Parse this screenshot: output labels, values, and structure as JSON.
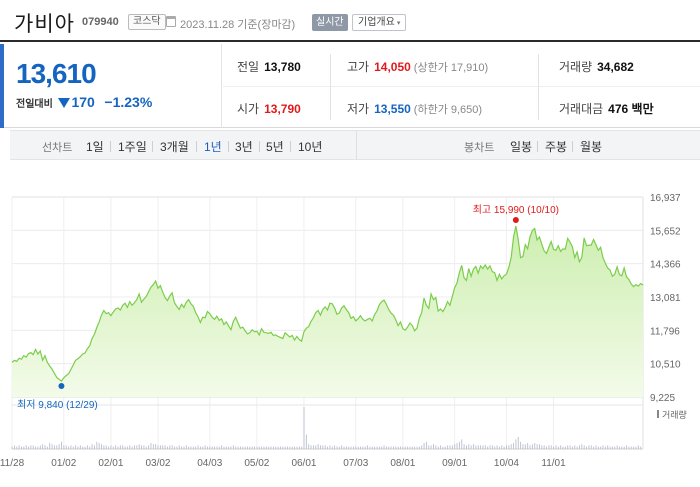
{
  "header": {
    "name": "가비아",
    "code": "079940",
    "market": "코스닥",
    "date": "2023.11.28  기준(장마감)",
    "realtime_label": "실시간",
    "overview_label": "기업개요",
    "caret": "▾"
  },
  "quote": {
    "price": "13,610",
    "change_label": "전일대비",
    "change_amount": "170",
    "change_percent": "−1.23%",
    "direction": "down"
  },
  "stats": {
    "prev_close": {
      "label": "전일",
      "value": "13,780"
    },
    "open": {
      "label": "시가",
      "value": "13,790"
    },
    "high": {
      "label": "고가",
      "value": "14,050",
      "sub": "(상한가 17,910)"
    },
    "low": {
      "label": "저가",
      "value": "13,550",
      "sub": "(하한가 9,650)"
    },
    "volume": {
      "label": "거래량",
      "value": "34,682"
    },
    "amount": {
      "label": "거래대금",
      "value": "476 백만"
    }
  },
  "periods": {
    "line_label": "선차트",
    "line_items": [
      "1일",
      "1주일",
      "3개월",
      "1년",
      "3년",
      "5년",
      "10년"
    ],
    "active": "1년",
    "candle_label": "봉차트",
    "candle_items": [
      "일봉",
      "주봉",
      "월봉"
    ]
  },
  "colors": {
    "accent_blue": "#1565c0",
    "up_red": "#e01a1a",
    "line_green": "#7ccd4c",
    "fill_green_top": "#cdeeb0",
    "fill_green_bottom": "#f3fbe9"
  },
  "chart_data": {
    "type": "area",
    "ylim": [
      9225,
      16937
    ],
    "yticks": [
      "16,937",
      "15,652",
      "14,366",
      "13,081",
      "11,796",
      "10,510",
      "9,225"
    ],
    "ytick_values": [
      16937,
      15652,
      14366,
      13081,
      11796,
      10510,
      9225
    ],
    "xlabels": [
      "11/28",
      "01/02",
      "02/01",
      "03/02",
      "04/03",
      "05/02",
      "06/01",
      "07/03",
      "08/01",
      "09/01",
      "10/04",
      "11/01"
    ],
    "xlabel_index": [
      0,
      22,
      42,
      62,
      84,
      104,
      124,
      146,
      166,
      188,
      210,
      230
    ],
    "high_annotation": "최고 15,990 (10/10)",
    "low_annotation": "최저 9,840 (12/29)",
    "volume_label": "거래량",
    "prices": [
      10560,
      10640,
      10600,
      10720,
      10680,
      10820,
      10760,
      10900,
      10940,
      10860,
      11060,
      10880,
      11000,
      10640,
      10820,
      10560,
      10420,
      10300,
      10140,
      9980,
      9910,
      9840,
      9960,
      10050,
      10120,
      10280,
      10460,
      10640,
      10700,
      10780,
      10880,
      10920,
      11080,
      11200,
      11480,
      11640,
      11900,
      12120,
      12380,
      12560,
      12440,
      12480,
      12360,
      12500,
      12620,
      12660,
      12580,
      12760,
      12840,
      12680,
      12900,
      12760,
      12860,
      12980,
      13200,
      12880,
      13000,
      13100,
      13280,
      13460,
      13560,
      13700,
      13420,
      13520,
      13280,
      13060,
      12940,
      13120,
      13240,
      12860,
      12720,
      12600,
      12800,
      12680,
      12880,
      12980,
      12820,
      12720,
      12480,
      12320,
      12100,
      12300,
      12280,
      12520,
      12440,
      12300,
      12220,
      12340,
      12180,
      12240,
      12020,
      12120,
      11960,
      11820,
      12140,
      12300,
      12080,
      11880,
      11920,
      11780,
      11660,
      11700,
      11820,
      11740,
      11760,
      11620,
      11860,
      11720,
      11700,
      11680,
      11720,
      11600,
      11620,
      11560,
      11520,
      11480,
      11700,
      11620,
      11540,
      11600,
      11420,
      11560,
      11440,
      11380,
      11740,
      11880,
      11940,
      12140,
      12280,
      12480,
      12560,
      12380,
      12600,
      12700,
      12580,
      12840,
      12820,
      12660,
      12420,
      12460,
      12660,
      12740,
      12600,
      12480,
      12260,
      12320,
      12160,
      12240,
      12360,
      12220,
      12160,
      12220,
      12260,
      12160,
      12400,
      12540,
      12780,
      12900,
      12960,
      12800,
      12600,
      12460,
      12380,
      12200,
      11980,
      12120,
      11860,
      11800,
      11920,
      12080,
      11980,
      11780,
      11880,
      12260,
      12480,
      13040,
      12760,
      12640,
      13200,
      12980,
      13060,
      12540,
      12620,
      12520,
      12680,
      12900,
      12760,
      13100,
      13440,
      13620,
      14020,
      14300,
      13820,
      13720,
      14180,
      13880,
      14160,
      14260,
      14000,
      14280,
      14180,
      14320,
      14160,
      14280,
      14060,
      14020,
      13720,
      13960,
      13780,
      13900,
      13960,
      14220,
      14600,
      15380,
      15820,
      15300,
      14600,
      14640,
      15100,
      14940,
      15400,
      15640,
      15720,
      15280,
      15400,
      15120,
      14860,
      14760,
      15000,
      15220,
      14920,
      14880,
      15060,
      14840,
      14940,
      14920,
      15340,
      15200,
      15020,
      14600,
      14820,
      14440,
      14600,
      15360,
      15060,
      15080,
      15080,
      15300,
      15100,
      14880,
      15000,
      14600,
      14380,
      14200,
      14120,
      13880,
      13960,
      14240,
      13940,
      13900,
      14200,
      13860,
      13760,
      13580,
      13480,
      13560,
      13500,
      13600,
      13540
    ],
    "volumes": [
      2,
      3,
      2,
      3,
      2,
      2,
      3,
      2,
      3,
      3,
      2,
      2,
      3,
      4,
      3,
      2,
      5,
      4,
      3,
      3,
      4,
      6,
      3,
      3,
      2,
      3,
      2,
      3,
      2,
      3,
      2,
      2,
      3,
      2,
      4,
      3,
      6,
      5,
      4,
      3,
      3,
      2,
      3,
      2,
      3,
      2,
      3,
      3,
      2,
      2,
      3,
      2,
      3,
      3,
      4,
      3,
      3,
      2,
      3,
      5,
      4,
      4,
      3,
      3,
      3,
      3,
      2,
      3,
      3,
      2,
      2,
      3,
      2,
      2,
      3,
      2,
      2,
      2,
      2,
      3,
      2,
      2,
      3,
      2,
      2,
      2,
      2,
      2,
      2,
      3,
      2,
      2,
      2,
      2,
      3,
      2,
      2,
      2,
      2,
      2,
      2,
      2,
      2,
      2,
      2,
      2,
      2,
      2,
      2,
      2,
      2,
      2,
      2,
      2,
      2,
      2,
      2,
      2,
      2,
      2,
      2,
      2,
      2,
      2,
      35,
      12,
      4,
      3,
      3,
      3,
      4,
      3,
      3,
      3,
      2,
      3,
      2,
      3,
      2,
      2,
      3,
      2,
      2,
      2,
      2,
      2,
      2,
      2,
      2,
      2,
      2,
      3,
      2,
      2,
      2,
      2,
      2,
      2,
      3,
      2,
      2,
      2,
      2,
      2,
      2,
      2,
      2,
      2,
      2,
      2,
      2,
      2,
      2,
      2,
      3,
      5,
      6,
      3,
      3,
      4,
      3,
      2,
      3,
      2,
      2,
      3,
      3,
      3,
      4,
      5,
      6,
      8,
      4,
      3,
      4,
      3,
      4,
      3,
      3,
      3,
      3,
      3,
      2,
      3,
      3,
      2,
      3,
      2,
      3,
      2,
      3,
      3,
      4,
      5,
      8,
      10,
      6,
      4,
      4,
      5,
      3,
      4,
      5,
      4,
      4,
      3,
      3,
      2,
      3,
      3,
      2,
      3,
      2,
      3,
      2,
      2,
      3,
      3,
      2,
      3,
      2,
      3,
      4,
      3,
      2,
      3,
      3,
      2,
      3,
      2,
      2,
      3,
      2,
      3,
      2,
      2,
      2,
      3,
      2,
      2,
      2,
      3,
      2,
      2,
      2,
      2,
      3,
      2
    ]
  }
}
